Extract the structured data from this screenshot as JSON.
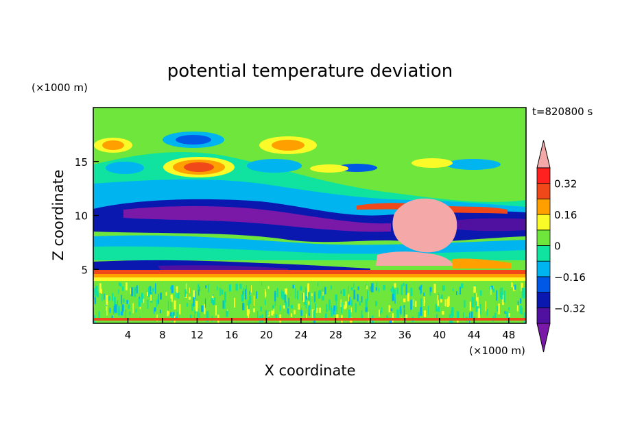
{
  "chart_data": {
    "type": "heatmap",
    "title": "potential temperature deviation",
    "xlabel": "X coordinate",
    "ylabel": "Z coordinate",
    "x_unit": "(×1000 m)",
    "y_unit": "(×1000 m)",
    "time_label": "t=820800 s",
    "xlim": [
      0,
      50
    ],
    "ylim": [
      0,
      20
    ],
    "x_ticks": [
      4,
      8,
      12,
      16,
      20,
      24,
      28,
      32,
      36,
      40,
      44,
      48
    ],
    "x_tick_labels": [
      "4",
      "8",
      "12",
      "16",
      "20",
      "24",
      "28",
      "32",
      "36",
      "40",
      "44",
      "48"
    ],
    "y_ticks": [
      5,
      10,
      15
    ],
    "y_tick_labels": [
      "5",
      "10",
      "15"
    ],
    "colorbar": {
      "levels": [
        -0.4,
        -0.32,
        -0.24,
        -0.16,
        -0.08,
        0,
        0.08,
        0.16,
        0.24,
        0.32,
        0.4
      ],
      "colors": [
        "#7a18a8",
        "#5010a0",
        "#0a18b0",
        "#0058e6",
        "#00b4f0",
        "#10e2a0",
        "#6ee63c",
        "#fafa28",
        "#ffa000",
        "#f04818",
        "#ff2020",
        "#f4a8a8"
      ],
      "labels": [
        "0.32",
        "0.16",
        "0",
        "−0.16",
        "−0.32"
      ],
      "label_values": [
        0.32,
        0.16,
        0,
        -0.16,
        -0.32
      ],
      "extend": "both"
    }
  }
}
